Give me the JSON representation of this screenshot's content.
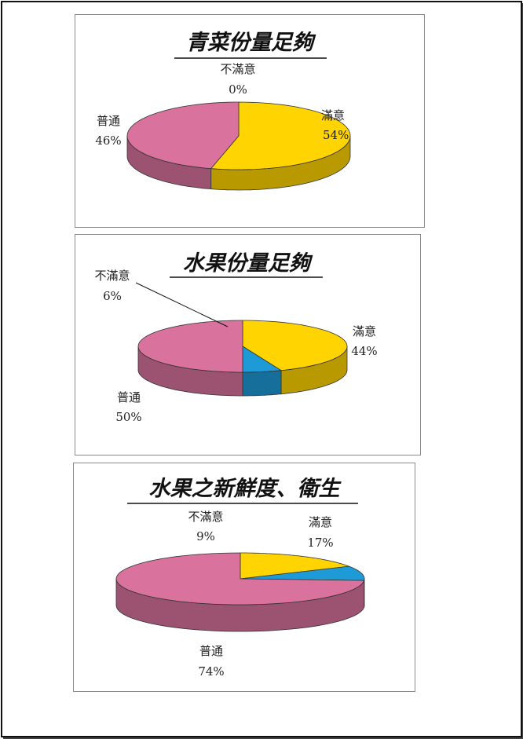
{
  "colors": {
    "satisfied": "#FFD400",
    "normal": "#D9739E",
    "dissatisfied": "#1E9AD6"
  },
  "chart_data": [
    {
      "type": "pie",
      "title": "青菜份量足夠",
      "slices": [
        {
          "label": "滿意",
          "value": 54,
          "value_text": "54%"
        },
        {
          "label": "不滿意",
          "value": 0,
          "value_text": "0%"
        },
        {
          "label": "普通",
          "value": 46,
          "value_text": "46%"
        }
      ]
    },
    {
      "type": "pie",
      "title": "水果份量足夠",
      "slices": [
        {
          "label": "滿意",
          "value": 44,
          "value_text": "44%"
        },
        {
          "label": "不滿意",
          "value": 6,
          "value_text": "6%"
        },
        {
          "label": "普通",
          "value": 50,
          "value_text": "50%"
        }
      ]
    },
    {
      "type": "pie",
      "title": "水果之新鮮度、衛生",
      "slices": [
        {
          "label": "滿意",
          "value": 17,
          "value_text": "17%"
        },
        {
          "label": "不滿意",
          "value": 9,
          "value_text": "9%"
        },
        {
          "label": "普通",
          "value": 74,
          "value_text": "74%"
        }
      ]
    }
  ]
}
